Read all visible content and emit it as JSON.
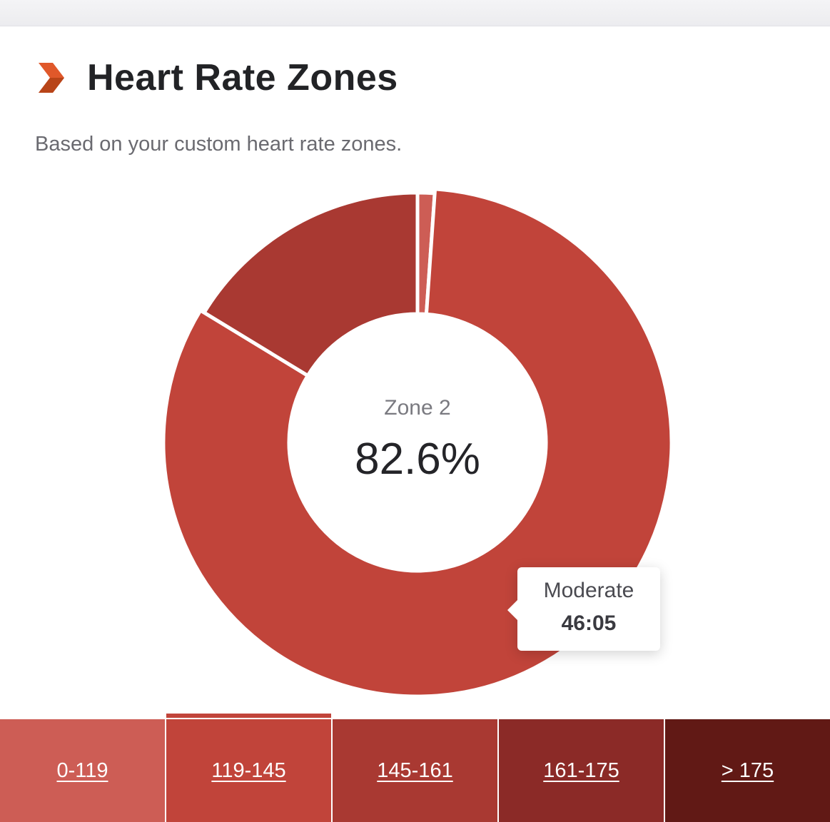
{
  "header": {
    "title": "Heart Rate Zones",
    "subtitle": "Based on your custom heart rate zones."
  },
  "colors": {
    "accent_chevron": "#e0582a",
    "zone_colors": [
      "#cd5d55",
      "#c1443a",
      "#a93932",
      "#8b2a27",
      "#611915"
    ]
  },
  "chart_data": {
    "type": "pie",
    "donut": true,
    "categories": [
      "0-119",
      "119-145",
      "145-161",
      "161-175",
      "> 175"
    ],
    "values": [
      1.1,
      82.6,
      16.3,
      0,
      0
    ],
    "highlighted_category": "119-145",
    "center_label": "Zone 2",
    "center_value": "82.6%",
    "tooltip": {
      "label": "Moderate",
      "value": "46:05"
    }
  },
  "zones": [
    {
      "label": "0-119",
      "active": false
    },
    {
      "label": "119-145",
      "active": true
    },
    {
      "label": "145-161",
      "active": false
    },
    {
      "label": "161-175",
      "active": false
    },
    {
      "label": "> 175",
      "active": false
    }
  ]
}
